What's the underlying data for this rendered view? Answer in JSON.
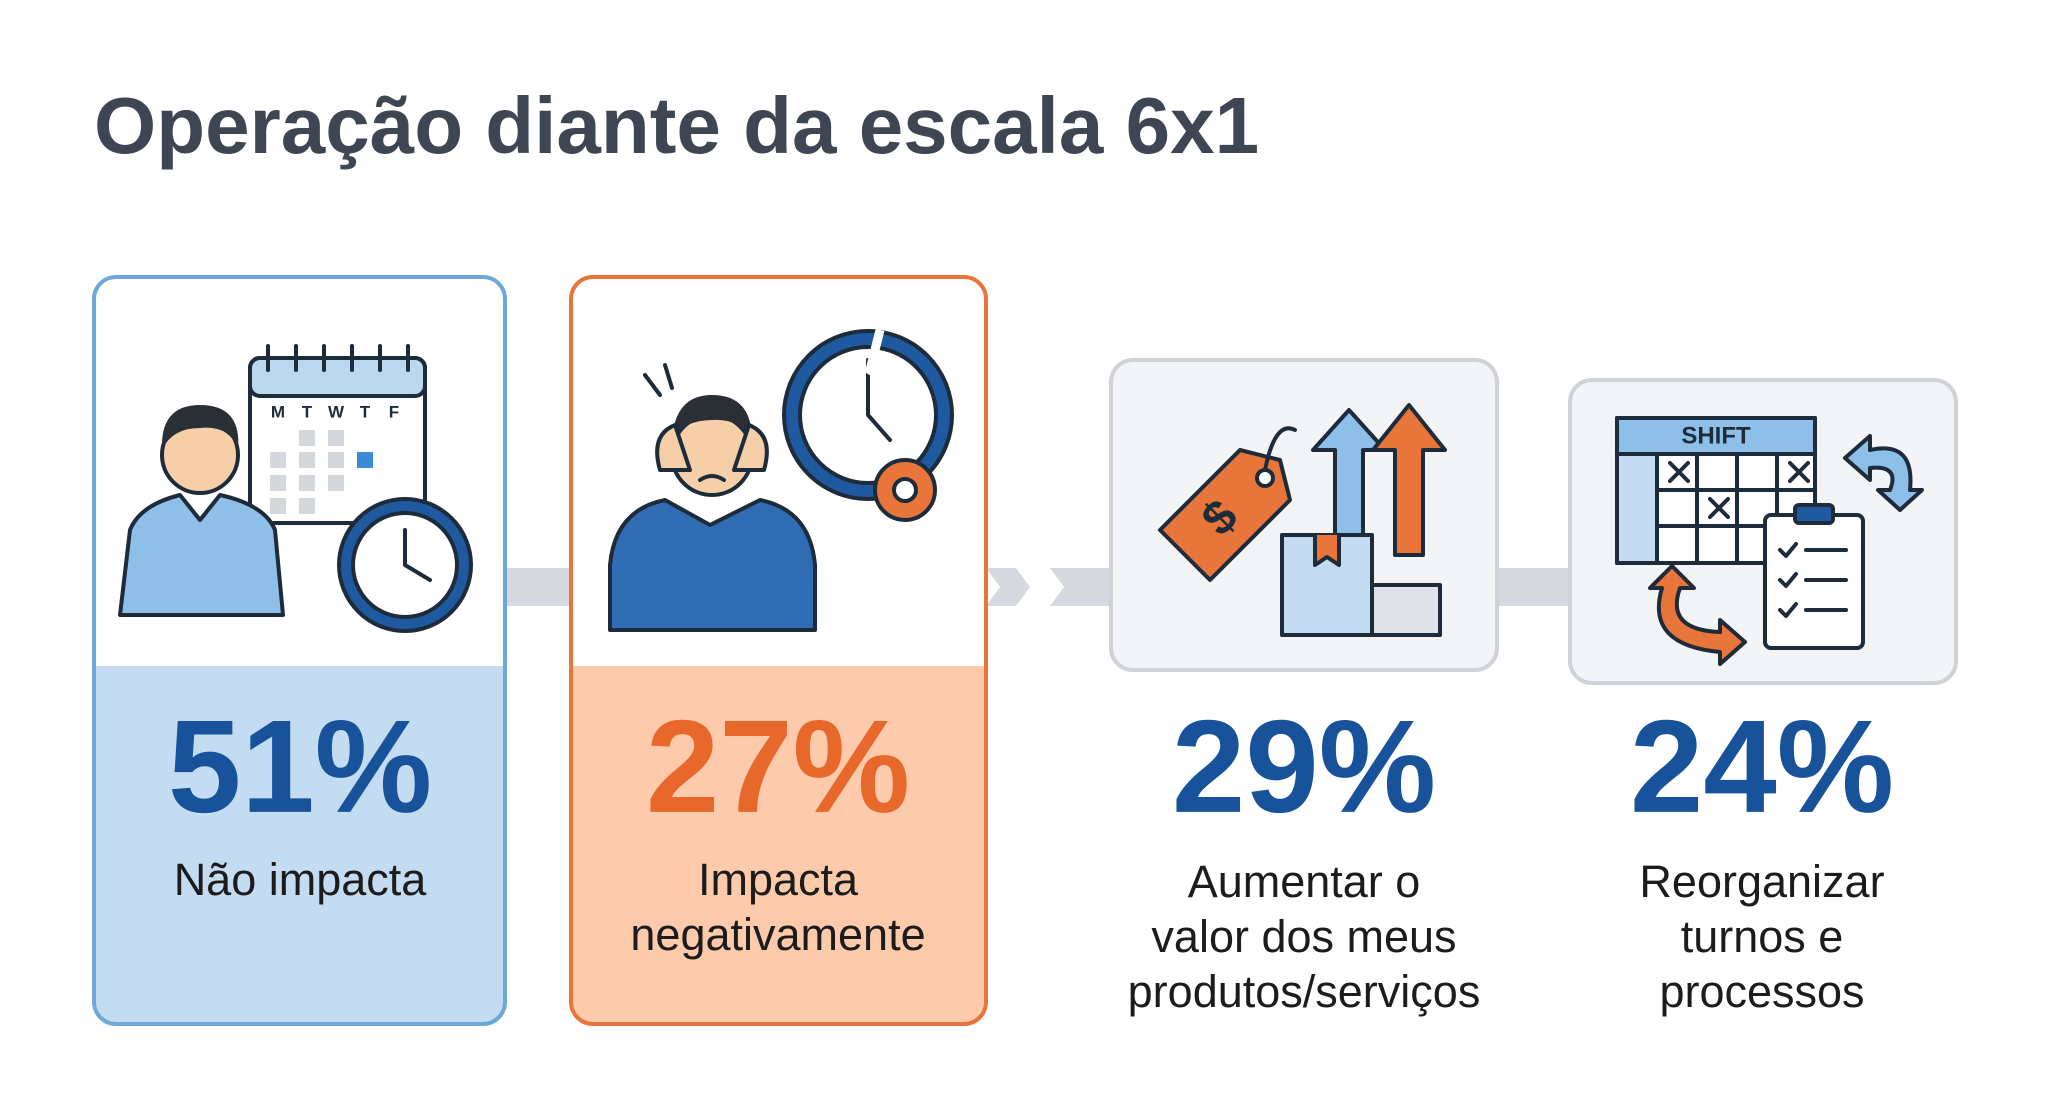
{
  "title": "Operação diante da escala 6x1",
  "cards": [
    {
      "percent": "51%",
      "label": [
        "Não impacta"
      ]
    },
    {
      "percent": "27%",
      "label": [
        "Impacta",
        "negativamente"
      ]
    },
    {
      "percent": "29%",
      "label": [
        "Aumentar o",
        "valor dos meus",
        "produtos/serviços"
      ]
    },
    {
      "percent": "24%",
      "label": [
        "Reorganizar",
        "turnos e",
        "processos"
      ]
    }
  ],
  "icons": {
    "calendar_days": [
      "M",
      "T",
      "W",
      "T",
      "F"
    ],
    "shift": "SHIFT"
  }
}
